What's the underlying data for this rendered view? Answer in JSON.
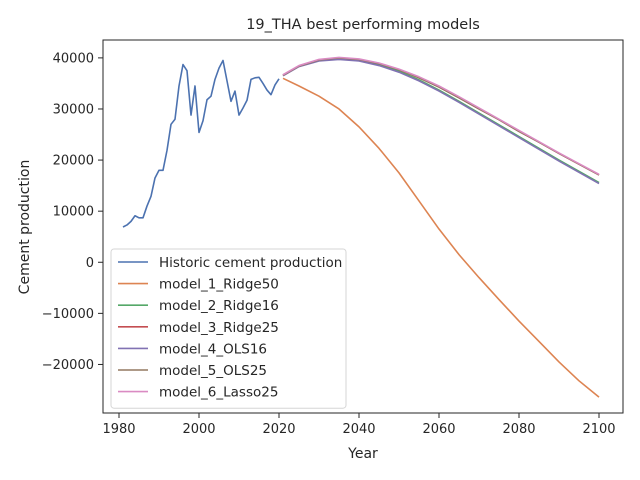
{
  "chart_data": {
    "type": "line",
    "title": "19_THA best performing models",
    "xlabel": "Year",
    "ylabel": "Cement production",
    "xlim": [
      1976,
      2106
    ],
    "ylim": [
      -29500,
      43500
    ],
    "xticks": [
      1980,
      2000,
      2020,
      2040,
      2060,
      2080,
      2100
    ],
    "yticks": [
      -20000,
      -10000,
      0,
      10000,
      20000,
      30000,
      40000
    ],
    "grid": false,
    "legend_position": "lower-left",
    "historic": {
      "name": "Historic cement production",
      "color": "#4c72b0",
      "x": [
        1981,
        1982,
        1983,
        1984,
        1985,
        1986,
        1987,
        1988,
        1989,
        1990,
        1991,
        1992,
        1993,
        1994,
        1995,
        1996,
        1997,
        1998,
        1999,
        2000,
        2001,
        2002,
        2003,
        2004,
        2005,
        2006,
        2007,
        2008,
        2009,
        2010,
        2011,
        2012,
        2013,
        2014,
        2015,
        2016,
        2017,
        2018,
        2019,
        2020
      ],
      "y": [
        6900,
        7300,
        8000,
        9100,
        8700,
        8700,
        11000,
        12900,
        16500,
        18000,
        18000,
        21900,
        27000,
        28000,
        34500,
        38700,
        37500,
        28800,
        34500,
        25400,
        27700,
        31800,
        32500,
        35800,
        38000,
        39500,
        35500,
        31500,
        33500,
        28800,
        30200,
        31700,
        35800,
        36100,
        36200,
        35000,
        33700,
        32800,
        34700,
        35900
      ]
    },
    "model_x": [
      2021,
      2025,
      2030,
      2035,
      2040,
      2045,
      2050,
      2055,
      2060,
      2065,
      2070,
      2075,
      2080,
      2085,
      2090,
      2095,
      2100
    ],
    "series": [
      {
        "name": "model_1_Ridge50",
        "color": "#dd8452",
        "values": [
          36000,
          34500,
          32500,
          30000,
          26500,
          22300,
          17500,
          12000,
          6500,
          1500,
          -3000,
          -7300,
          -11500,
          -15500,
          -19500,
          -23200,
          -26400
        ]
      },
      {
        "name": "model_2_Ridge16",
        "color": "#55a868",
        "values": [
          36600,
          38400,
          39600,
          40000,
          39600,
          38700,
          37400,
          35700,
          33700,
          31500,
          29200,
          26900,
          24600,
          22300,
          20000,
          17800,
          15600
        ]
      },
      {
        "name": "model_3_Ridge25",
        "color": "#c44e52",
        "values": [
          36600,
          38400,
          39600,
          40000,
          39700,
          38900,
          37700,
          36100,
          34300,
          32200,
          30000,
          27900,
          25600,
          23500,
          21300,
          19200,
          17100
        ]
      },
      {
        "name": "model_4_OLS16",
        "color": "#8172b3",
        "values": [
          36500,
          38300,
          39400,
          39700,
          39400,
          38500,
          37200,
          35500,
          33500,
          31300,
          29000,
          26700,
          24400,
          22100,
          19800,
          17600,
          15400
        ]
      },
      {
        "name": "model_5_OLS25",
        "color": "#937860",
        "values": [
          36600,
          38400,
          39600,
          40000,
          39700,
          38900,
          37700,
          36100,
          34300,
          32200,
          30000,
          27900,
          25600,
          23500,
          21300,
          19200,
          17100
        ]
      },
      {
        "name": "model_6_Lasso25",
        "color": "#da8bc3",
        "values": [
          36700,
          38500,
          39700,
          40100,
          39800,
          39000,
          37800,
          36300,
          34500,
          32400,
          30200,
          28000,
          25800,
          23600,
          21400,
          19300,
          17200
        ]
      }
    ]
  }
}
